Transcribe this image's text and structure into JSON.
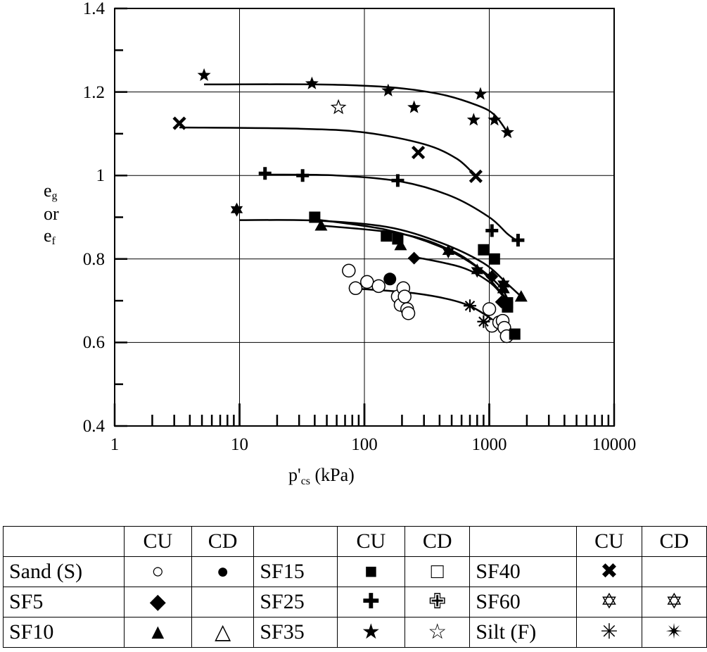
{
  "chart_data": {
    "type": "scatter",
    "title": "",
    "xlabel_main": "p'",
    "xlabel_sub": "cs",
    "xlabel_unit": "(kPa)",
    "ylabel_lines": [
      {
        "main": "e",
        "sub": "g"
      },
      {
        "main": "or",
        "sub": ""
      },
      {
        "main": "e",
        "sub": "f"
      }
    ],
    "xscale": "log",
    "xlim": [
      1,
      10000
    ],
    "ylim": [
      0.4,
      1.4
    ],
    "x_ticks": [
      "1",
      "10",
      "100",
      "1000",
      "10000"
    ],
    "y_ticks": [
      "0.4",
      "0.6",
      "0.8",
      "1",
      "1.2",
      "1.4"
    ],
    "grid": true,
    "series": [
      {
        "marker": "circle-open",
        "points": [
          [
            75,
            0.772
          ],
          [
            85,
            0.73
          ],
          [
            105,
            0.745
          ],
          [
            130,
            0.735
          ],
          [
            185,
            0.71
          ],
          [
            195,
            0.69
          ],
          [
            205,
            0.73
          ],
          [
            210,
            0.71
          ],
          [
            220,
            0.68
          ],
          [
            225,
            0.67
          ],
          [
            1000,
            0.68
          ],
          [
            1050,
            0.64
          ],
          [
            1200,
            0.648
          ],
          [
            1280,
            0.652
          ],
          [
            1320,
            0.635
          ],
          [
            1380,
            0.615
          ]
        ]
      },
      {
        "marker": "circle-filled",
        "points": [
          [
            160,
            0.752
          ]
        ]
      },
      {
        "marker": "diamond-filled",
        "points": [
          [
            250,
            0.802
          ],
          [
            1050,
            0.758
          ],
          [
            1250,
            0.697
          ]
        ]
      },
      {
        "marker": "triangle-filled",
        "points": [
          [
            45,
            0.88
          ],
          [
            195,
            0.833
          ],
          [
            1300,
            0.73
          ],
          [
            1800,
            0.71
          ]
        ]
      },
      {
        "marker": "square-filled",
        "points": [
          [
            40,
            0.9
          ],
          [
            150,
            0.855
          ],
          [
            185,
            0.848
          ],
          [
            900,
            0.822
          ],
          [
            1100,
            0.8
          ],
          [
            1400,
            0.695
          ],
          [
            1400,
            0.685
          ],
          [
            1600,
            0.62
          ]
        ]
      },
      {
        "marker": "plus-filled",
        "points": [
          [
            16,
            1.005
          ],
          [
            32,
            1.0
          ],
          [
            185,
            0.988
          ],
          [
            1050,
            0.868
          ],
          [
            1700,
            0.845
          ]
        ]
      },
      {
        "marker": "star-filled",
        "points": [
          [
            5.2,
            1.24
          ],
          [
            38,
            1.22
          ],
          [
            155,
            1.203
          ],
          [
            250,
            1.163
          ],
          [
            850,
            1.195
          ],
          [
            750,
            1.133
          ],
          [
            1100,
            1.133
          ],
          [
            1400,
            1.103
          ]
        ]
      },
      {
        "marker": "star-open",
        "points": [
          [
            62,
            1.163
          ]
        ]
      },
      {
        "marker": "x",
        "points": [
          [
            3.3,
            1.125
          ],
          [
            270,
            1.055
          ],
          [
            780,
            0.998
          ]
        ]
      },
      {
        "marker": "star6-filled",
        "points": [
          [
            9.5,
            0.918
          ],
          [
            470,
            0.818
          ],
          [
            800,
            0.772
          ],
          [
            1300,
            0.74
          ]
        ]
      },
      {
        "marker": "asterisk",
        "points": [
          [
            700,
            0.688
          ],
          [
            900,
            0.65
          ]
        ]
      }
    ],
    "curves": [
      [
        [
          5.2,
          1.218
        ],
        [
          40,
          1.218
        ],
        [
          150,
          1.212
        ],
        [
          400,
          1.195
        ],
        [
          800,
          1.168
        ],
        [
          1100,
          1.145
        ],
        [
          1400,
          1.103
        ]
      ],
      [
        [
          3.3,
          1.115
        ],
        [
          30,
          1.112
        ],
        [
          100,
          1.103
        ],
        [
          300,
          1.075
        ],
        [
          550,
          1.04
        ],
        [
          780,
          0.998
        ]
      ],
      [
        [
          16,
          1.002
        ],
        [
          60,
          1.0
        ],
        [
          200,
          0.985
        ],
        [
          500,
          0.95
        ],
        [
          1000,
          0.9
        ],
        [
          1400,
          0.86
        ],
        [
          1700,
          0.842
        ]
      ],
      [
        [
          10,
          0.893
        ],
        [
          40,
          0.892
        ],
        [
          150,
          0.877
        ],
        [
          400,
          0.84
        ],
        [
          900,
          0.79
        ],
        [
          1400,
          0.74
        ],
        [
          1800,
          0.71
        ]
      ],
      [
        [
          40,
          0.895
        ],
        [
          150,
          0.87
        ],
        [
          400,
          0.83
        ],
        [
          800,
          0.78
        ],
        [
          1200,
          0.725
        ],
        [
          1500,
          0.69
        ]
      ],
      [
        [
          45,
          0.88
        ],
        [
          200,
          0.86
        ],
        [
          500,
          0.82
        ],
        [
          900,
          0.77
        ],
        [
          1250,
          0.73
        ],
        [
          1450,
          0.695
        ]
      ],
      [
        [
          250,
          0.805
        ],
        [
          600,
          0.78
        ],
        [
          1000,
          0.745
        ],
        [
          1300,
          0.71
        ],
        [
          1500,
          0.69
        ]
      ],
      [
        [
          75,
          0.73
        ],
        [
          250,
          0.718
        ],
        [
          600,
          0.695
        ],
        [
          1000,
          0.66
        ],
        [
          1300,
          0.63
        ],
        [
          1450,
          0.62
        ]
      ]
    ]
  },
  "legend": {
    "header": [
      "",
      "CU",
      "CD",
      "",
      "CU",
      "CD",
      "",
      "CU",
      "CD"
    ],
    "rows": [
      [
        {
          "t": "Sand (S)"
        },
        {
          "s": "circle-open"
        },
        {
          "s": "circle-filled"
        },
        {
          "t": "SF15"
        },
        {
          "s": "square-filled"
        },
        {
          "s": "square-open"
        },
        {
          "t": "SF40"
        },
        {
          "s": "x"
        },
        {
          "s": ""
        }
      ],
      [
        {
          "t": "SF5"
        },
        {
          "s": "diamond-filled"
        },
        {
          "s": ""
        },
        {
          "t": "SF25"
        },
        {
          "s": "plus-filled"
        },
        {
          "s": "plus-open"
        },
        {
          "t": "SF60"
        },
        {
          "s": "star6-filled"
        },
        {
          "s": "star6-open"
        }
      ],
      [
        {
          "t": "SF10"
        },
        {
          "s": "triangle-filled"
        },
        {
          "s": "triangle-open"
        },
        {
          "t": "SF35"
        },
        {
          "s": "star-filled"
        },
        {
          "s": "star-open"
        },
        {
          "t": "Silt (F)"
        },
        {
          "s": "asterisk"
        },
        {
          "s": "asterisk-open"
        }
      ]
    ]
  }
}
